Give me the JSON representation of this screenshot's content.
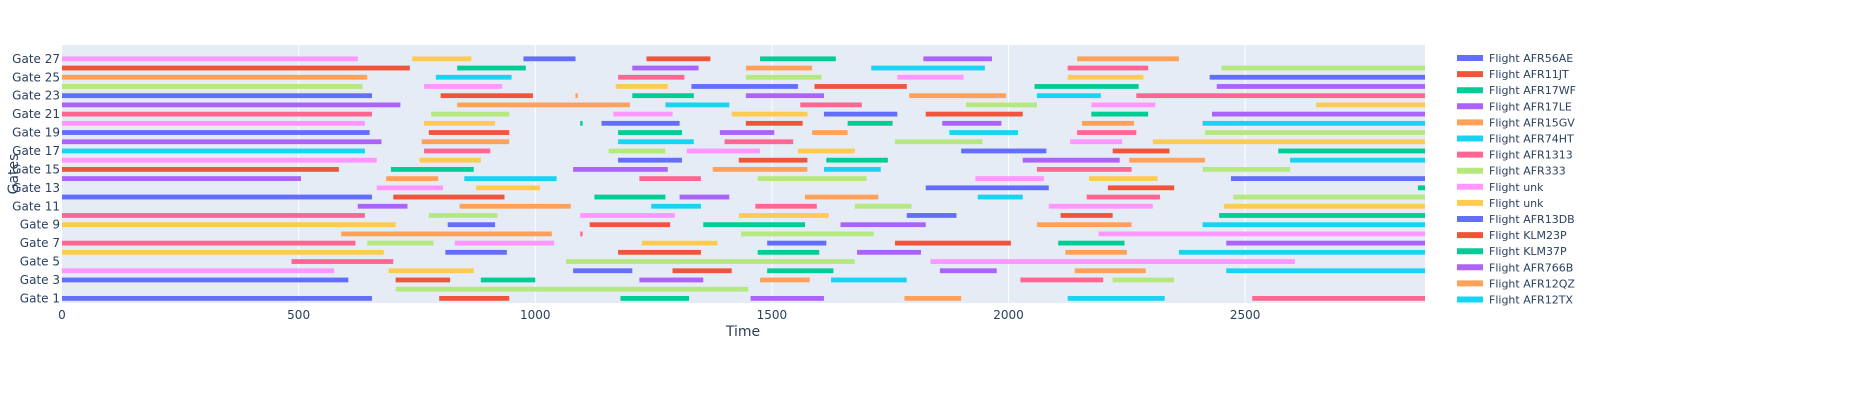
{
  "chart_data": {
    "type": "gantt",
    "xlabel": "Time",
    "ylabel": "Gates",
    "xlim": [
      0,
      2880
    ],
    "x_ticks": [
      0,
      500,
      1000,
      1500,
      2000,
      2500
    ],
    "y_tick_labels": [
      "Gate 1",
      "Gate 3",
      "Gate 5",
      "Gate 7",
      "Gate 9",
      "Gate 11",
      "Gate 13",
      "Gate 15",
      "Gate 17",
      "Gate 19",
      "Gate 21",
      "Gate 23",
      "Gate 25",
      "Gate 27"
    ],
    "y_tick_gates": [
      1,
      3,
      5,
      7,
      9,
      11,
      13,
      15,
      17,
      19,
      21,
      23,
      25,
      27
    ],
    "gate_count": 28,
    "legend_placement": "right",
    "legend": [
      {
        "name": "Flight AFR56AE",
        "color": "#636efa"
      },
      {
        "name": "Flight AFR11JT",
        "color": "#EF553B"
      },
      {
        "name": "Flight AFR17WF",
        "color": "#00cc96"
      },
      {
        "name": "Flight AFR17LE",
        "color": "#ab63fa"
      },
      {
        "name": "Flight AFR15GV",
        "color": "#FFA15A"
      },
      {
        "name": "Flight AFR74HT",
        "color": "#19d3f3"
      },
      {
        "name": "Flight AFR1313",
        "color": "#FF6692"
      },
      {
        "name": "Flight AFR333",
        "color": "#B6E880"
      },
      {
        "name": "Flight unk",
        "color": "#FF97FF"
      },
      {
        "name": "Flight unk",
        "color": "#FECB52"
      },
      {
        "name": "Flight AFR13DB",
        "color": "#636efa"
      },
      {
        "name": "Flight KLM23P",
        "color": "#EF553B"
      },
      {
        "name": "Flight KLM37P",
        "color": "#00cc96"
      },
      {
        "name": "Flight AFR766B",
        "color": "#ab63fa"
      },
      {
        "name": "Flight AFR12QZ",
        "color": "#FFA15A"
      },
      {
        "name": "Flight AFR12TX",
        "color": "#19d3f3"
      }
    ],
    "palette": [
      "#636efa",
      "#EF553B",
      "#00cc96",
      "#ab63fa",
      "#FFA15A",
      "#19d3f3",
      "#FF6692",
      "#B6E880",
      "#FF97FF",
      "#FECB52"
    ],
    "rows": [
      {
        "gate": 1,
        "bars": [
          [
            0,
            655,
            0
          ],
          [
            797,
            945,
            1
          ],
          [
            1180,
            1325,
            2
          ],
          [
            1455,
            1610,
            3
          ],
          [
            1780,
            1900,
            4
          ],
          [
            2125,
            2330,
            5
          ],
          [
            2515,
            2880,
            6
          ]
        ]
      },
      {
        "gate": 2,
        "bars": [
          [
            705,
            1450,
            7
          ]
        ]
      },
      {
        "gate": 3,
        "bars": [
          [
            0,
            605,
            0
          ],
          [
            705,
            820,
            1
          ],
          [
            885,
            1000,
            2
          ],
          [
            1220,
            1355,
            3
          ],
          [
            1475,
            1580,
            4
          ],
          [
            1625,
            1785,
            5
          ],
          [
            2025,
            2200,
            6
          ],
          [
            2220,
            2350,
            7
          ]
        ]
      },
      {
        "gate": 4,
        "bars": [
          [
            0,
            575,
            8
          ],
          [
            690,
            870,
            9
          ],
          [
            1080,
            1205,
            0
          ],
          [
            1290,
            1415,
            1
          ],
          [
            1490,
            1630,
            2
          ],
          [
            1855,
            1975,
            3
          ],
          [
            2140,
            2290,
            4
          ],
          [
            2460,
            2880,
            5
          ]
        ]
      },
      {
        "gate": 5,
        "bars": [
          [
            485,
            700,
            6
          ],
          [
            1065,
            1675,
            7
          ],
          [
            1835,
            2605,
            8
          ]
        ]
      },
      {
        "gate": 6,
        "bars": [
          [
            0,
            680,
            9
          ],
          [
            810,
            940,
            0
          ],
          [
            1175,
            1350,
            1
          ],
          [
            1470,
            1600,
            2
          ],
          [
            1680,
            1815,
            3
          ],
          [
            2120,
            2250,
            4
          ],
          [
            2360,
            2880,
            5
          ]
        ]
      },
      {
        "gate": 7,
        "bars": [
          [
            0,
            620,
            6
          ],
          [
            645,
            785,
            7
          ],
          [
            830,
            1040,
            8
          ],
          [
            1225,
            1385,
            9
          ],
          [
            1490,
            1615,
            0
          ],
          [
            1760,
            2005,
            1
          ],
          [
            2105,
            2245,
            2
          ],
          [
            2460,
            2880,
            3
          ]
        ]
      },
      {
        "gate": 8,
        "bars": [
          [
            590,
            1035,
            4
          ],
          [
            1095,
            1100,
            6
          ],
          [
            1435,
            1715,
            7
          ],
          [
            2190,
            2880,
            8
          ]
        ]
      },
      {
        "gate": 9,
        "bars": [
          [
            0,
            705,
            9
          ],
          [
            815,
            915,
            0
          ],
          [
            1115,
            1285,
            1
          ],
          [
            1355,
            1570,
            2
          ],
          [
            1645,
            1825,
            3
          ],
          [
            2060,
            2260,
            4
          ],
          [
            2410,
            2880,
            5
          ]
        ]
      },
      {
        "gate": 10,
        "bars": [
          [
            0,
            640,
            6
          ],
          [
            775,
            920,
            7
          ],
          [
            1095,
            1295,
            8
          ],
          [
            1430,
            1620,
            9
          ],
          [
            1785,
            1890,
            0
          ],
          [
            2110,
            2220,
            1
          ],
          [
            2445,
            2880,
            2
          ]
        ]
      },
      {
        "gate": 11,
        "bars": [
          [
            625,
            730,
            3
          ],
          [
            840,
            1075,
            4
          ],
          [
            1245,
            1350,
            5
          ],
          [
            1465,
            1595,
            6
          ],
          [
            1675,
            1795,
            7
          ],
          [
            2085,
            2305,
            8
          ],
          [
            2455,
            2880,
            9
          ]
        ]
      },
      {
        "gate": 12,
        "bars": [
          [
            0,
            655,
            0
          ],
          [
            700,
            935,
            1
          ],
          [
            1125,
            1275,
            2
          ],
          [
            1305,
            1410,
            3
          ],
          [
            1570,
            1725,
            4
          ],
          [
            1935,
            2030,
            5
          ],
          [
            2165,
            2320,
            6
          ],
          [
            2475,
            2880,
            7
          ]
        ]
      },
      {
        "gate": 13,
        "bars": [
          [
            665,
            805,
            8
          ],
          [
            875,
            1010,
            9
          ],
          [
            1825,
            2085,
            0
          ],
          [
            2210,
            2350,
            1
          ],
          [
            2865,
            2880,
            2
          ]
        ]
      },
      {
        "gate": 14,
        "bars": [
          [
            0,
            505,
            3
          ],
          [
            685,
            795,
            4
          ],
          [
            850,
            1045,
            5
          ],
          [
            1220,
            1350,
            6
          ],
          [
            1470,
            1700,
            7
          ],
          [
            1930,
            2075,
            8
          ],
          [
            2170,
            2315,
            9
          ],
          [
            2470,
            2880,
            0
          ]
        ]
      },
      {
        "gate": 15,
        "bars": [
          [
            0,
            585,
            1
          ],
          [
            695,
            870,
            2
          ],
          [
            1080,
            1280,
            3
          ],
          [
            1375,
            1575,
            4
          ],
          [
            1610,
            1730,
            5
          ],
          [
            2060,
            2260,
            6
          ],
          [
            2410,
            2595,
            7
          ]
        ]
      },
      {
        "gate": 16,
        "bars": [
          [
            0,
            665,
            8
          ],
          [
            755,
            885,
            9
          ],
          [
            1175,
            1310,
            0
          ],
          [
            1430,
            1575,
            1
          ],
          [
            1615,
            1745,
            2
          ],
          [
            2030,
            2235,
            3
          ],
          [
            2255,
            2415,
            4
          ],
          [
            2595,
            2880,
            5
          ]
        ]
      },
      {
        "gate": 17,
        "bars": [
          [
            0,
            640,
            5
          ],
          [
            765,
            905,
            6
          ],
          [
            1155,
            1275,
            7
          ],
          [
            1320,
            1475,
            8
          ],
          [
            1555,
            1675,
            9
          ],
          [
            1900,
            2080,
            0
          ],
          [
            2220,
            2340,
            1
          ],
          [
            2570,
            2880,
            2
          ]
        ]
      },
      {
        "gate": 18,
        "bars": [
          [
            0,
            675,
            3
          ],
          [
            760,
            945,
            4
          ],
          [
            1175,
            1335,
            5
          ],
          [
            1400,
            1545,
            6
          ],
          [
            1760,
            1945,
            7
          ],
          [
            2130,
            2240,
            8
          ],
          [
            2305,
            2880,
            9
          ]
        ]
      },
      {
        "gate": 19,
        "bars": [
          [
            0,
            650,
            0
          ],
          [
            775,
            945,
            1
          ],
          [
            1175,
            1310,
            2
          ],
          [
            1390,
            1505,
            3
          ],
          [
            1585,
            1660,
            4
          ],
          [
            1875,
            2020,
            5
          ],
          [
            2145,
            2270,
            6
          ],
          [
            2415,
            2880,
            7
          ]
        ]
      },
      {
        "gate": 20,
        "bars": [
          [
            0,
            640,
            8
          ],
          [
            765,
            915,
            9
          ],
          [
            1095,
            1100,
            2
          ],
          [
            1140,
            1305,
            0
          ],
          [
            1445,
            1565,
            1
          ],
          [
            1660,
            1755,
            2
          ],
          [
            1860,
            1985,
            3
          ],
          [
            2155,
            2265,
            4
          ],
          [
            2410,
            2880,
            5
          ]
        ]
      },
      {
        "gate": 21,
        "bars": [
          [
            0,
            655,
            6
          ],
          [
            780,
            945,
            7
          ],
          [
            1165,
            1290,
            8
          ],
          [
            1415,
            1575,
            9
          ],
          [
            1610,
            1765,
            0
          ],
          [
            1825,
            2030,
            1
          ],
          [
            2175,
            2295,
            2
          ],
          [
            2430,
            2880,
            3
          ]
        ]
      },
      {
        "gate": 22,
        "bars": [
          [
            0,
            715,
            3
          ],
          [
            835,
            1200,
            4
          ],
          [
            1275,
            1410,
            5
          ],
          [
            1560,
            1690,
            6
          ],
          [
            1910,
            2060,
            7
          ],
          [
            2175,
            2310,
            8
          ],
          [
            2650,
            2880,
            9
          ]
        ]
      },
      {
        "gate": 23,
        "bars": [
          [
            0,
            655,
            0
          ],
          [
            800,
            995,
            1
          ],
          [
            1085,
            1090,
            4
          ],
          [
            1205,
            1335,
            2
          ],
          [
            1445,
            1610,
            3
          ],
          [
            1790,
            1995,
            4
          ],
          [
            2060,
            2195,
            5
          ],
          [
            2270,
            2880,
            6
          ]
        ]
      },
      {
        "gate": 24,
        "bars": [
          [
            0,
            635,
            7
          ],
          [
            765,
            930,
            8
          ],
          [
            1170,
            1280,
            9
          ],
          [
            1330,
            1555,
            0
          ],
          [
            1590,
            1785,
            1
          ],
          [
            2055,
            2275,
            2
          ],
          [
            2440,
            2880,
            3
          ]
        ]
      },
      {
        "gate": 25,
        "bars": [
          [
            0,
            645,
            4
          ],
          [
            790,
            950,
            5
          ],
          [
            1175,
            1315,
            6
          ],
          [
            1445,
            1605,
            7
          ],
          [
            1765,
            1905,
            8
          ],
          [
            2125,
            2285,
            9
          ],
          [
            2425,
            2880,
            0
          ]
        ]
      },
      {
        "gate": 26,
        "bars": [
          [
            0,
            735,
            1
          ],
          [
            835,
            980,
            2
          ],
          [
            1205,
            1345,
            3
          ],
          [
            1445,
            1585,
            4
          ],
          [
            1710,
            1950,
            5
          ],
          [
            2125,
            2295,
            6
          ],
          [
            2450,
            2880,
            7
          ]
        ]
      },
      {
        "gate": 27,
        "bars": [
          [
            0,
            625,
            8
          ],
          [
            740,
            865,
            9
          ],
          [
            975,
            1085,
            0
          ],
          [
            1235,
            1370,
            1
          ],
          [
            1475,
            1635,
            2
          ],
          [
            1820,
            1965,
            3
          ],
          [
            2145,
            2360,
            4
          ]
        ]
      }
    ]
  }
}
